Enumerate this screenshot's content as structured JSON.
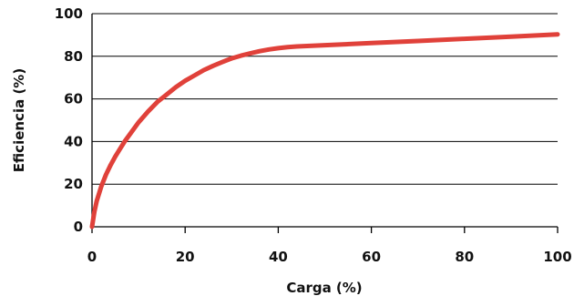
{
  "chart_data": {
    "type": "line",
    "title": "",
    "xlabel": "Carga (%)",
    "ylabel": "Eficiencia (%)",
    "xlim": [
      0,
      100
    ],
    "ylim": [
      0,
      100
    ],
    "xticks": [
      0,
      20,
      40,
      60,
      80,
      100
    ],
    "yticks": [
      0,
      20,
      40,
      60,
      80,
      100
    ],
    "grid": "horizontal",
    "legend": "none",
    "series": [
      {
        "color": "#e0413a",
        "x": [
          0,
          0.5,
          1,
          2,
          3,
          4,
          5,
          6,
          7,
          8,
          10,
          12,
          14,
          16,
          18,
          20,
          22,
          24,
          26,
          28,
          30,
          32,
          34,
          36,
          38,
          40,
          42,
          44,
          50,
          60,
          70,
          80,
          90,
          100
        ],
        "y": [
          0,
          7,
          12,
          19,
          24.5,
          29,
          33,
          36.5,
          40,
          43,
          49,
          54,
          58.5,
          62,
          65.5,
          68.5,
          71,
          73.5,
          75.5,
          77.3,
          79,
          80.3,
          81.4,
          82.4,
          83.2,
          83.8,
          84.3,
          84.6,
          85.2,
          86.2,
          87.2,
          88.2,
          89.2,
          90.3
        ]
      }
    ]
  }
}
